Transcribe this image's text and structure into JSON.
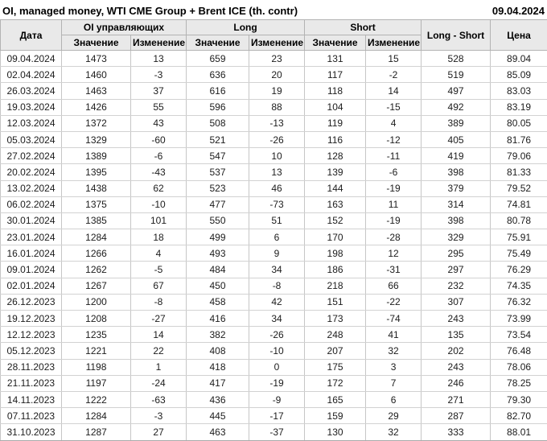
{
  "title": "OI, managed money, WTI CME Group + Brent ICE (th. contr)",
  "report_date": "09.04.2024",
  "colors": {
    "positive": "#109410",
    "negative": "#cc2222",
    "header_bg": "#e9e9e9"
  },
  "table": {
    "headers": {
      "date": "Дата",
      "group_oi": "OI управляющих",
      "group_long": "Long",
      "group_short": "Short",
      "value": "Значение",
      "change": "Изменение",
      "long_short": "Long - Short",
      "price": "Цена"
    },
    "rows": [
      {
        "date": "09.04.2024",
        "oi": "1473",
        "oi_chg": "13",
        "long": "659",
        "long_chg": "23",
        "short": "131",
        "short_chg": "15",
        "long_short": "528",
        "price": "89.04"
      },
      {
        "date": "02.04.2024",
        "oi": "1460",
        "oi_chg": "-3",
        "long": "636",
        "long_chg": "20",
        "short": "117",
        "short_chg": "-2",
        "long_short": "519",
        "price": "85.09"
      },
      {
        "date": "26.03.2024",
        "oi": "1463",
        "oi_chg": "37",
        "long": "616",
        "long_chg": "19",
        "short": "118",
        "short_chg": "14",
        "long_short": "497",
        "price": "83.03"
      },
      {
        "date": "19.03.2024",
        "oi": "1426",
        "oi_chg": "55",
        "long": "596",
        "long_chg": "88",
        "short": "104",
        "short_chg": "-15",
        "long_short": "492",
        "price": "83.19"
      },
      {
        "date": "12.03.2024",
        "oi": "1372",
        "oi_chg": "43",
        "long": "508",
        "long_chg": "-13",
        "short": "119",
        "short_chg": "4",
        "long_short": "389",
        "price": "80.05"
      },
      {
        "date": "05.03.2024",
        "oi": "1329",
        "oi_chg": "-60",
        "long": "521",
        "long_chg": "-26",
        "short": "116",
        "short_chg": "-12",
        "long_short": "405",
        "price": "81.76"
      },
      {
        "date": "27.02.2024",
        "oi": "1389",
        "oi_chg": "-6",
        "long": "547",
        "long_chg": "10",
        "short": "128",
        "short_chg": "-11",
        "long_short": "419",
        "price": "79.06"
      },
      {
        "date": "20.02.2024",
        "oi": "1395",
        "oi_chg": "-43",
        "long": "537",
        "long_chg": "13",
        "short": "139",
        "short_chg": "-6",
        "long_short": "398",
        "price": "81.33"
      },
      {
        "date": "13.02.2024",
        "oi": "1438",
        "oi_chg": "62",
        "long": "523",
        "long_chg": "46",
        "short": "144",
        "short_chg": "-19",
        "long_short": "379",
        "price": "79.52"
      },
      {
        "date": "06.02.2024",
        "oi": "1375",
        "oi_chg": "-10",
        "long": "477",
        "long_chg": "-73",
        "short": "163",
        "short_chg": "11",
        "long_short": "314",
        "price": "74.81"
      },
      {
        "date": "30.01.2024",
        "oi": "1385",
        "oi_chg": "101",
        "long": "550",
        "long_chg": "51",
        "short": "152",
        "short_chg": "-19",
        "long_short": "398",
        "price": "80.78"
      },
      {
        "date": "23.01.2024",
        "oi": "1284",
        "oi_chg": "18",
        "long": "499",
        "long_chg": "6",
        "short": "170",
        "short_chg": "-28",
        "long_short": "329",
        "price": "75.91"
      },
      {
        "date": "16.01.2024",
        "oi": "1266",
        "oi_chg": "4",
        "long": "493",
        "long_chg": "9",
        "short": "198",
        "short_chg": "12",
        "long_short": "295",
        "price": "75.49"
      },
      {
        "date": "09.01.2024",
        "oi": "1262",
        "oi_chg": "-5",
        "long": "484",
        "long_chg": "34",
        "short": "186",
        "short_chg": "-31",
        "long_short": "297",
        "price": "76.29"
      },
      {
        "date": "02.01.2024",
        "oi": "1267",
        "oi_chg": "67",
        "long": "450",
        "long_chg": "-8",
        "short": "218",
        "short_chg": "66",
        "long_short": "232",
        "price": "74.35"
      },
      {
        "date": "26.12.2023",
        "oi": "1200",
        "oi_chg": "-8",
        "long": "458",
        "long_chg": "42",
        "short": "151",
        "short_chg": "-22",
        "long_short": "307",
        "price": "76.32"
      },
      {
        "date": "19.12.2023",
        "oi": "1208",
        "oi_chg": "-27",
        "long": "416",
        "long_chg": "34",
        "short": "173",
        "short_chg": "-74",
        "long_short": "243",
        "price": "73.99"
      },
      {
        "date": "12.12.2023",
        "oi": "1235",
        "oi_chg": "14",
        "long": "382",
        "long_chg": "-26",
        "short": "248",
        "short_chg": "41",
        "long_short": "135",
        "price": "73.54"
      },
      {
        "date": "05.12.2023",
        "oi": "1221",
        "oi_chg": "22",
        "long": "408",
        "long_chg": "-10",
        "short": "207",
        "short_chg": "32",
        "long_short": "202",
        "price": "76.48"
      },
      {
        "date": "28.11.2023",
        "oi": "1198",
        "oi_chg": "1",
        "long": "418",
        "long_chg": "0",
        "short": "175",
        "short_chg": "3",
        "long_short": "243",
        "price": "78.06"
      },
      {
        "date": "21.11.2023",
        "oi": "1197",
        "oi_chg": "-24",
        "long": "417",
        "long_chg": "-19",
        "short": "172",
        "short_chg": "7",
        "long_short": "246",
        "price": "78.25"
      },
      {
        "date": "14.11.2023",
        "oi": "1222",
        "oi_chg": "-63",
        "long": "436",
        "long_chg": "-9",
        "short": "165",
        "short_chg": "6",
        "long_short": "271",
        "price": "79.30"
      },
      {
        "date": "07.11.2023",
        "oi": "1284",
        "oi_chg": "-3",
        "long": "445",
        "long_chg": "-17",
        "short": "159",
        "short_chg": "29",
        "long_short": "287",
        "price": "82.70"
      },
      {
        "date": "31.10.2023",
        "oi": "1287",
        "oi_chg": "27",
        "long": "463",
        "long_chg": "-37",
        "short": "130",
        "short_chg": "32",
        "long_short": "333",
        "price": "88.01"
      }
    ]
  }
}
